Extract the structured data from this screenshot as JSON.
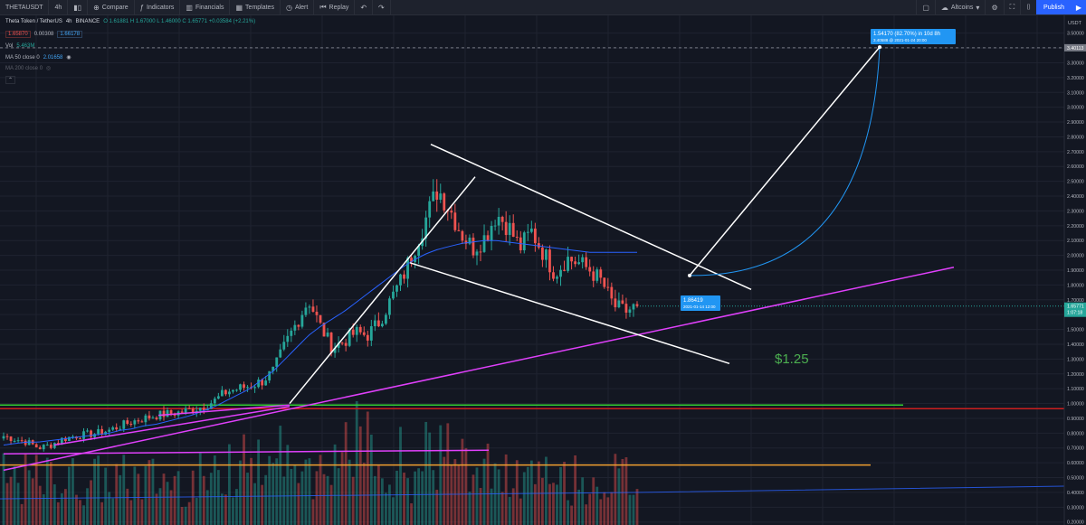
{
  "toolbar": {
    "symbol": "THETAUSDT",
    "interval": "4h",
    "compare": "Compare",
    "indicators": "Indicators",
    "financials": "Financials",
    "templates": "Templates",
    "alert": "Alert",
    "replay": "Replay",
    "watchlist": "Altcoins",
    "publish": "Publish"
  },
  "legend": {
    "title": "Theta Token / TetherUS",
    "interval": "4h",
    "exchange": "BINANCE",
    "ohlc": "O 1.61881  H 1.67000  L 1.46000  C 1.65771  +0.03584 (+2.21%)",
    "bid": "1.65870",
    "spread": "0.00308",
    "ask": "1.66178",
    "vol_label": "Vol",
    "vol_value": "5.463M",
    "ma50_label": "MA 50 close 0",
    "ma50_value": "2.01658",
    "ma200_label": "MA 200 close 0"
  },
  "colors": {
    "background": "#131722",
    "up": "#26a69a",
    "down": "#ef5350",
    "ma50": "#2962ff",
    "trendline_white": "#ffffff",
    "magenta": "#e040fb",
    "green_level": "#33cc33",
    "red_level": "#cc1f1f",
    "orange_level": "#f0a030",
    "accent": "#2962ff"
  },
  "annotations": {
    "target_label": "$1.25",
    "measure_top": "1.54170 (82.70%) in 10d 8h",
    "measure_top_sub": "3.40588 @ 2021-01-24 20:00",
    "measure_start": "1.86419",
    "measure_start_sub": "2021-01-14 12:00"
  },
  "chart_data": {
    "type": "candlestick",
    "ylabel": "USDT",
    "y_ticks": [
      0.2,
      0.3,
      0.4,
      0.5,
      0.6,
      0.7,
      0.8,
      0.9,
      1.0,
      1.1,
      1.2,
      1.3,
      1.4,
      1.5,
      1.6,
      1.7,
      1.8,
      1.9,
      2.0,
      2.1,
      2.2,
      2.3,
      2.4,
      2.5,
      2.6,
      2.7,
      2.8,
      2.9,
      3.0,
      3.1,
      3.2,
      3.3,
      3.4,
      3.5
    ],
    "y_tick_labels": [
      "0.20000",
      "0.30000",
      "0.40000",
      "0.50000",
      "0.60000",
      "0.70000",
      "0.80000",
      "0.90000",
      "1.00000",
      "1.10000",
      "1.20000",
      "1.30000",
      "1.40000",
      "1.50000",
      "1.60000",
      "1.70000",
      "1.80000",
      "1.90000",
      "2.00000",
      "2.10000",
      "2.20000",
      "2.30000",
      "2.40000",
      "2.50000",
      "2.60000",
      "2.70000",
      "2.80000",
      "2.90000",
      "3.00000",
      "3.10000",
      "3.20000",
      "3.30000",
      "3.40000",
      "3.50000"
    ],
    "ylim": [
      0.18,
      3.62
    ],
    "price_label_current": "1.65771",
    "price_label_countdown": "1:07:18",
    "price_label_target": "3.40113",
    "close_path": [
      0.78,
      0.76,
      0.74,
      0.7,
      0.72,
      0.76,
      0.78,
      0.79,
      0.8,
      0.82,
      0.85,
      0.88,
      0.9,
      0.92,
      0.93,
      0.94,
      0.96,
      0.98,
      1.02,
      1.08,
      1.1,
      1.12,
      1.15,
      1.22,
      1.4,
      1.55,
      1.7,
      1.52,
      1.38,
      1.42,
      1.48,
      1.46,
      1.55,
      1.7,
      1.85,
      2.05,
      2.25,
      2.45,
      2.32,
      2.15,
      2.05,
      2.12,
      2.28,
      2.2,
      2.05,
      2.16,
      2.02,
      1.88,
      1.98,
      1.95,
      1.9,
      1.82,
      1.66,
      1.62,
      1.66
    ],
    "ma50_path": [
      0.72,
      0.73,
      0.74,
      0.74,
      0.75,
      0.76,
      0.77,
      0.78,
      0.79,
      0.8,
      0.82,
      0.83,
      0.85,
      0.86,
      0.88,
      0.9,
      0.92,
      0.95,
      0.98,
      1.02,
      1.06,
      1.1,
      1.16,
      1.22,
      1.3,
      1.38,
      1.46,
      1.52,
      1.57,
      1.62,
      1.68,
      1.74,
      1.8,
      1.86,
      1.92,
      1.97,
      2.01,
      2.04,
      2.06,
      2.08,
      2.09,
      2.1,
      2.1,
      2.09,
      2.08,
      2.07,
      2.06,
      2.05,
      2.04,
      2.03,
      2.02,
      2.02,
      2.02,
      2.02,
      2.02
    ],
    "levels": [
      {
        "name": "green-support",
        "value": 0.99
      },
      {
        "name": "red-support",
        "value": 0.97
      },
      {
        "name": "orange-support",
        "value": 0.585
      }
    ]
  }
}
